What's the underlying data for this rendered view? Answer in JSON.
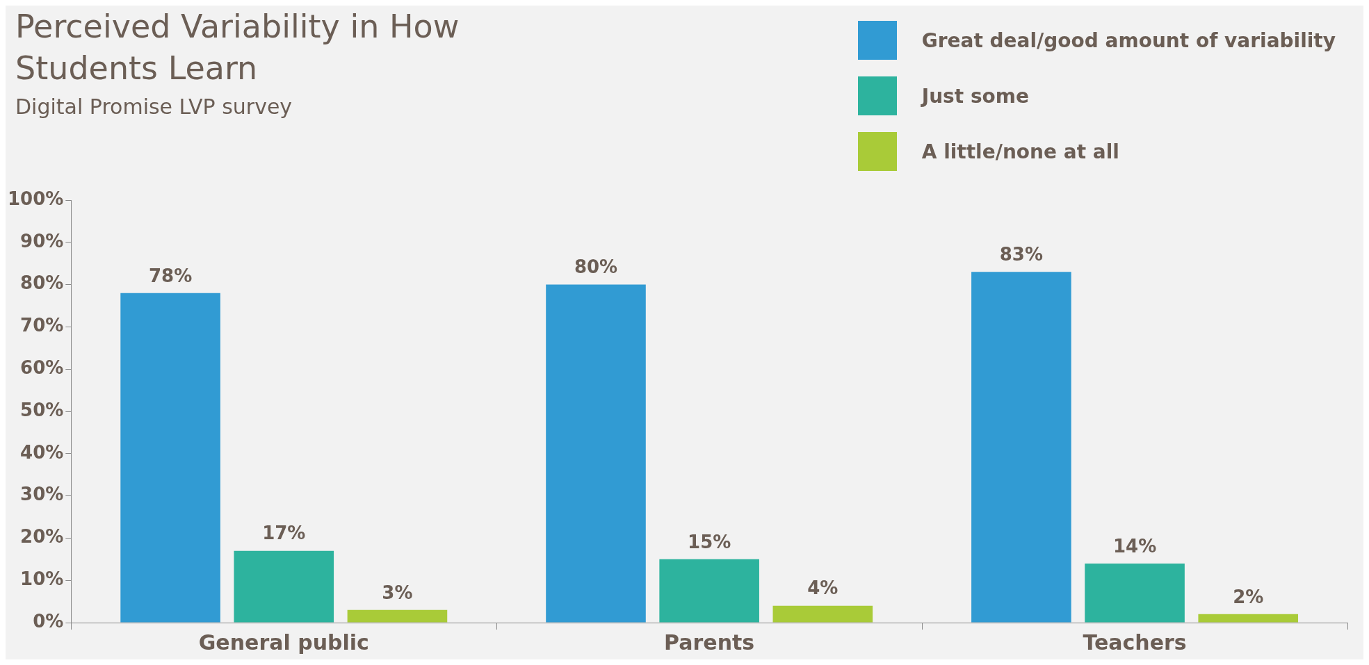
{
  "chart_data": {
    "type": "bar",
    "title": "Perceived Variability in How Students Learn",
    "subtitle": "Digital Promise LVP survey",
    "categories": [
      "General public",
      "Parents",
      "Teachers"
    ],
    "series": [
      {
        "name": "Great deal/good amount of variability",
        "color": "#319bd3",
        "values": [
          78,
          80,
          83
        ]
      },
      {
        "name": "Just some",
        "color": "#2db39e",
        "values": [
          17,
          15,
          14
        ]
      },
      {
        "name": "A little/none at all",
        "color": "#a9cb38",
        "values": [
          3,
          4,
          2
        ]
      }
    ],
    "ylim": [
      0,
      100
    ],
    "yticks": [
      {
        "value": 0,
        "label": "0%"
      },
      {
        "value": 10,
        "label": "10%"
      },
      {
        "value": 20,
        "label": "20%"
      },
      {
        "value": 30,
        "label": "30%"
      },
      {
        "value": 40,
        "label": "40%"
      },
      {
        "value": 50,
        "label": "50%"
      },
      {
        "value": 60,
        "label": "60%"
      },
      {
        "value": 70,
        "label": "70%"
      },
      {
        "value": 80,
        "label": "80%"
      },
      {
        "value": 90,
        "label": "90%"
      },
      {
        "value": 100,
        "label": "100%"
      }
    ],
    "value_labels": [
      [
        "78%",
        "80%",
        "83%"
      ],
      [
        "17%",
        "15%",
        "14%"
      ],
      [
        "3%",
        "4%",
        "2%"
      ]
    ],
    "grid": false,
    "legend": "top right"
  }
}
